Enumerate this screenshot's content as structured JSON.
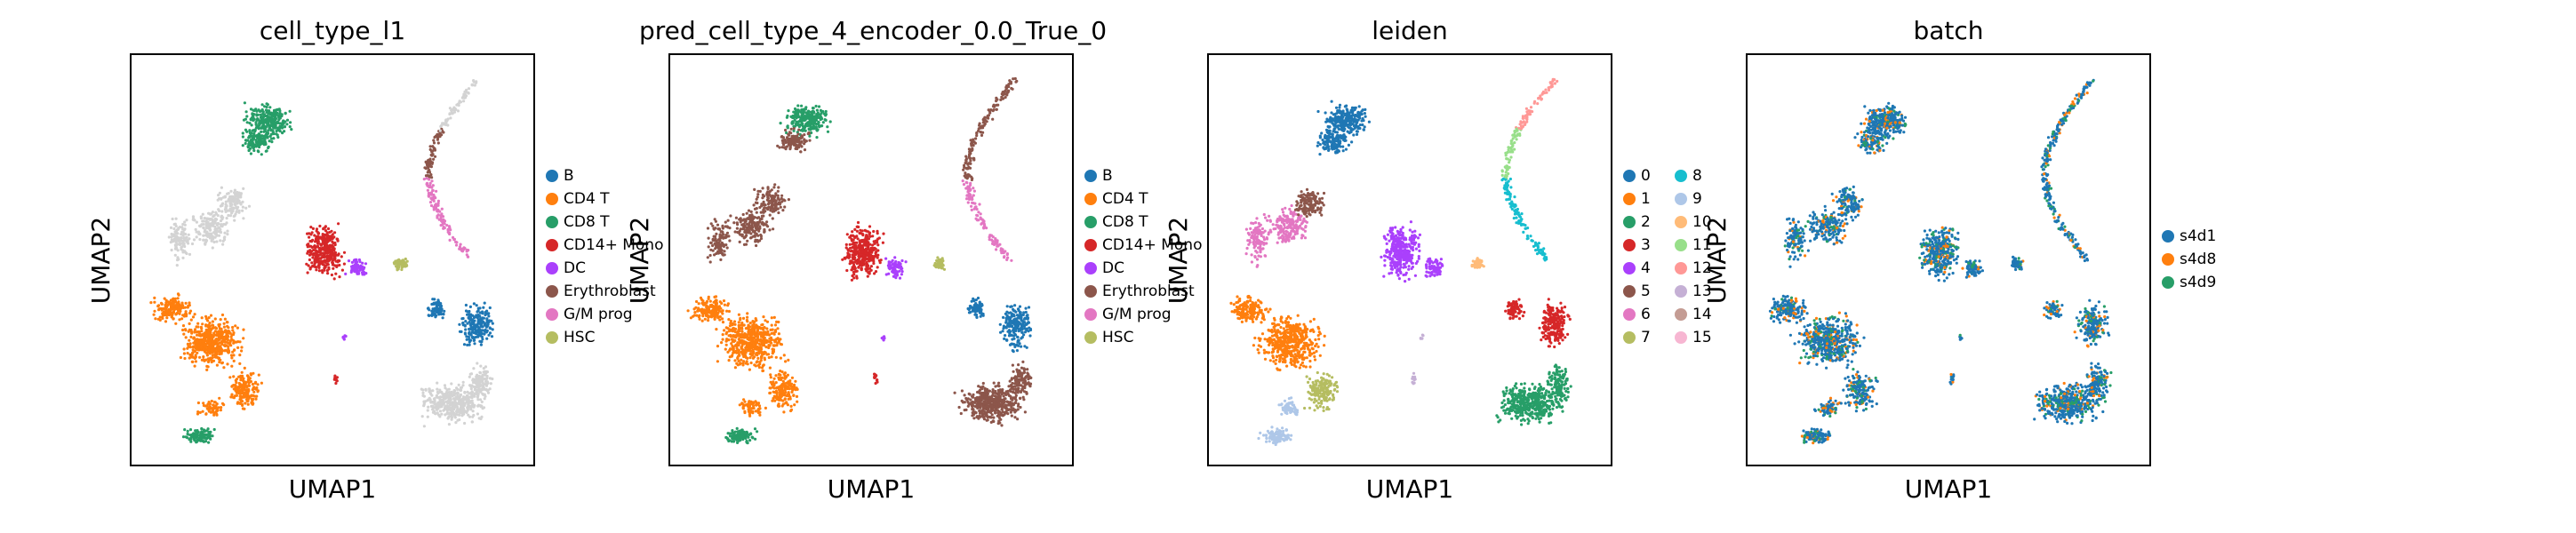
{
  "chart_data": [
    {
      "type": "scatter",
      "title": "cell_type_l1",
      "xlabel": "UMAP1",
      "ylabel": "UMAP2",
      "grid": false,
      "legend": "right",
      "categories": [
        {
          "name": "B",
          "color": "#1f77b4"
        },
        {
          "name": "CD4 T",
          "color": "#ff7f0e"
        },
        {
          "name": "CD8 T",
          "color": "#279e68"
        },
        {
          "name": "CD14+ Mono",
          "color": "#d62728"
        },
        {
          "name": "DC",
          "color": "#aa40fc"
        },
        {
          "name": "Erythroblast",
          "color": "#8c564b"
        },
        {
          "name": "G/M prog",
          "color": "#e377c2"
        },
        {
          "name": "HSC",
          "color": "#b5bd61"
        }
      ]
    },
    {
      "type": "scatter",
      "title": "pred_cell_type_4_encoder_0.0_True_0",
      "xlabel": "UMAP1",
      "ylabel": "UMAP2",
      "grid": false,
      "legend": "right",
      "categories": [
        {
          "name": "B",
          "color": "#1f77b4"
        },
        {
          "name": "CD4 T",
          "color": "#ff7f0e"
        },
        {
          "name": "CD8 T",
          "color": "#279e68"
        },
        {
          "name": "CD14+ Mono",
          "color": "#d62728"
        },
        {
          "name": "DC",
          "color": "#aa40fc"
        },
        {
          "name": "Erythroblast",
          "color": "#8c564b"
        },
        {
          "name": "G/M prog",
          "color": "#e377c2"
        },
        {
          "name": "HSC",
          "color": "#b5bd61"
        }
      ]
    },
    {
      "type": "scatter",
      "title": "leiden",
      "xlabel": "UMAP1",
      "ylabel": "UMAP2",
      "grid": false,
      "legend": "right",
      "categories": [
        {
          "name": "0",
          "color": "#1f77b4"
        },
        {
          "name": "1",
          "color": "#ff7f0e"
        },
        {
          "name": "2",
          "color": "#279e68"
        },
        {
          "name": "3",
          "color": "#d62728"
        },
        {
          "name": "4",
          "color": "#aa40fc"
        },
        {
          "name": "5",
          "color": "#8c564b"
        },
        {
          "name": "6",
          "color": "#e377c2"
        },
        {
          "name": "7",
          "color": "#b5bd61"
        },
        {
          "name": "8",
          "color": "#17becf"
        },
        {
          "name": "9",
          "color": "#aec7e8"
        },
        {
          "name": "10",
          "color": "#ffbb78"
        },
        {
          "name": "11",
          "color": "#98df8a"
        },
        {
          "name": "12",
          "color": "#ff9896"
        },
        {
          "name": "13",
          "color": "#c5b0d5"
        },
        {
          "name": "14",
          "color": "#c49c94"
        },
        {
          "name": "15",
          "color": "#f7b6d2"
        }
      ]
    },
    {
      "type": "scatter",
      "title": "batch",
      "xlabel": "UMAP1",
      "ylabel": "UMAP2",
      "grid": false,
      "legend": "right",
      "categories": [
        {
          "name": "s4d1",
          "color": "#1f77b4"
        },
        {
          "name": "s4d8",
          "color": "#ff7f0e"
        },
        {
          "name": "s4d9",
          "color": "#279e68"
        }
      ]
    }
  ]
}
